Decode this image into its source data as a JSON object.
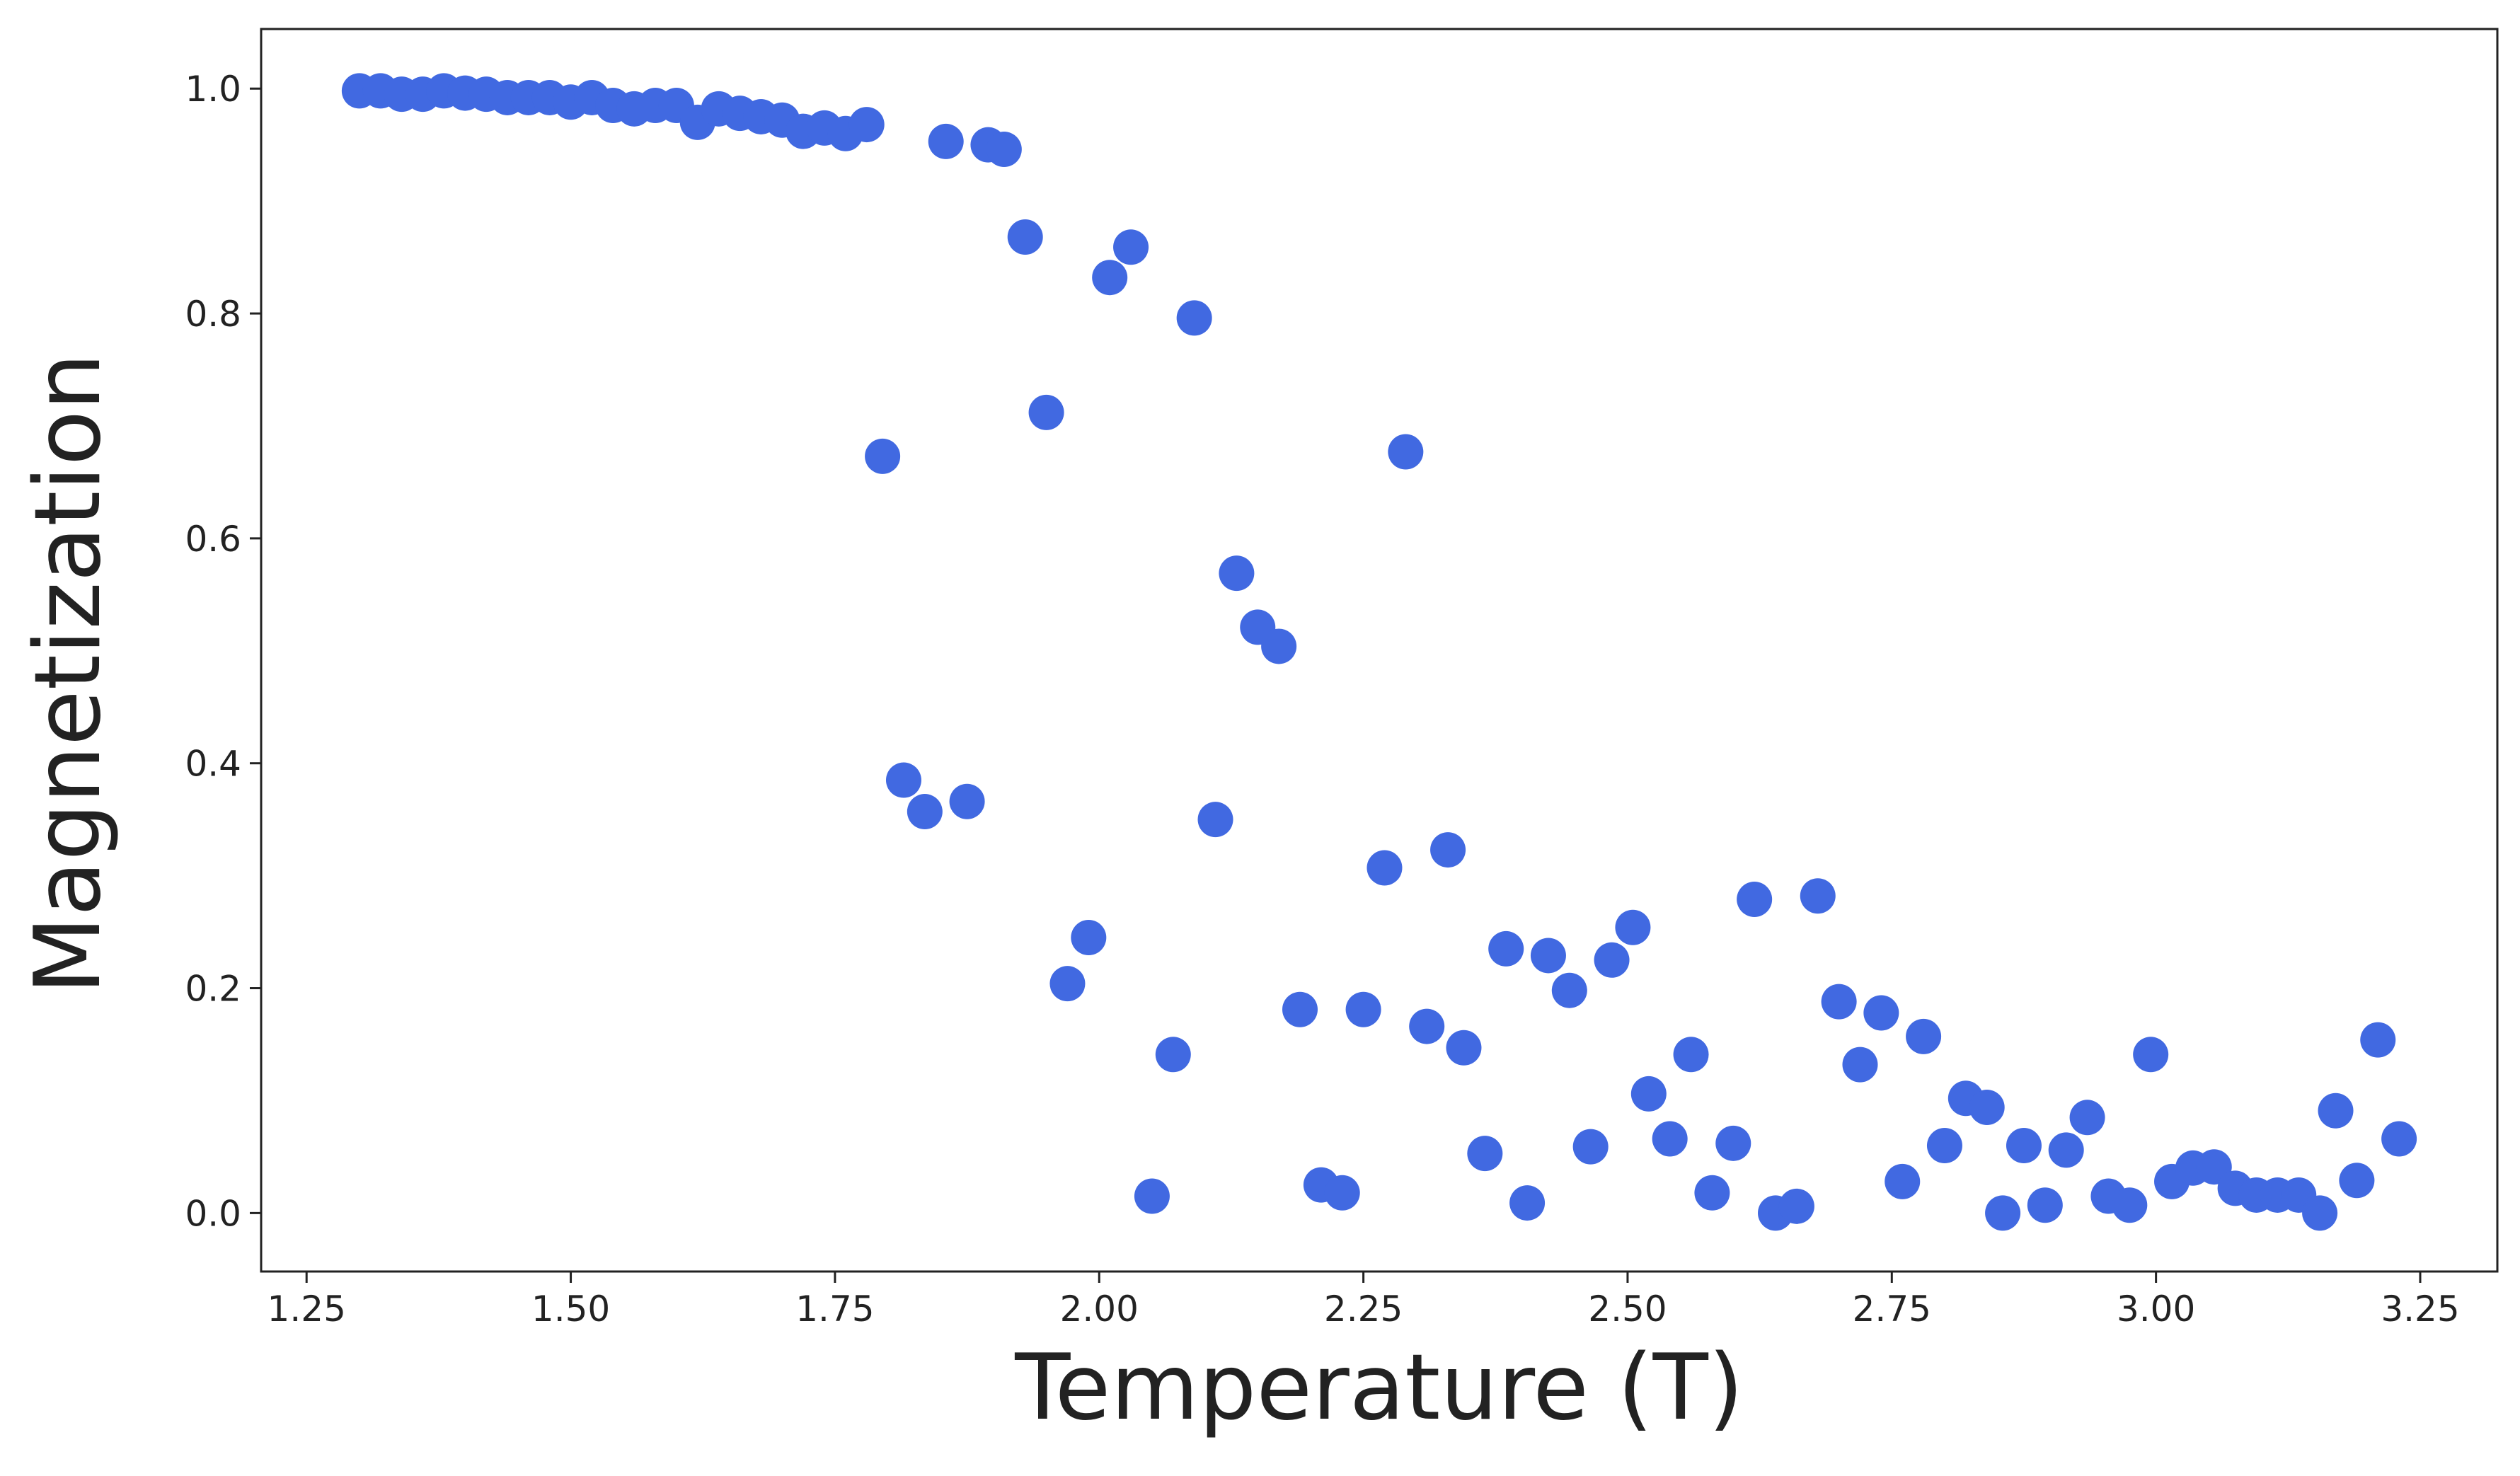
{
  "chart_data": {
    "type": "scatter",
    "x_label": "Temperature (T)",
    "y_label": "Magnetization",
    "color": "#4169e1",
    "xlim": [
      1.207,
      3.323
    ],
    "ylim": [
      -0.052,
      1.053
    ],
    "xticks": [
      1.25,
      {
        "value": 1.5,
        "label": "1.50"
      },
      1.75,
      {
        "value": 2,
        "label": "2.00"
      },
      2.25,
      {
        "value": 2.5,
        "label": "2.50"
      },
      2.75,
      {
        "value": 3,
        "label": "3.00"
      },
      3.25
    ],
    "yticks": [
      {
        "value": 0,
        "label": "0.0"
      },
      0.2,
      0.4,
      0.6,
      0.8,
      {
        "value": 1,
        "label": "1.0"
      }
    ],
    "x": [
      1.3,
      1.32,
      1.34,
      1.36,
      1.38,
      1.4,
      1.42,
      1.44,
      1.46,
      1.48,
      1.5,
      1.52,
      1.54,
      1.56,
      1.58,
      1.6,
      1.62,
      1.64,
      1.66,
      1.68,
      1.7,
      1.72,
      1.74,
      1.76,
      1.78,
      1.795,
      1.815,
      1.835,
      1.855,
      1.875,
      1.895,
      1.91,
      1.93,
      1.95,
      1.97,
      1.99,
      2.01,
      2.03,
      2.05,
      2.07,
      2.09,
      2.11,
      2.13,
      2.15,
      2.17,
      2.19,
      2.21,
      2.23,
      2.25,
      2.27,
      2.29,
      2.31,
      2.33,
      2.345,
      2.365,
      2.385,
      2.405,
      2.425,
      2.445,
      2.465,
      2.485,
      2.505,
      2.52,
      2.54,
      2.56,
      2.58,
      2.6,
      2.62,
      2.64,
      2.66,
      2.68,
      2.7,
      2.72,
      2.74,
      2.76,
      2.78,
      2.8,
      2.82,
      2.84,
      2.855,
      2.875,
      2.895,
      2.915,
      2.935,
      2.955,
      2.975,
      2.995,
      3.015,
      3.035,
      3.055,
      3.075,
      3.095,
      3.115,
      3.135,
      3.155,
      3.17,
      3.19,
      3.21,
      3.23
    ],
    "y": [
      0.998,
      0.998,
      0.995,
      0.995,
      0.998,
      0.996,
      0.995,
      0.992,
      0.992,
      0.992,
      0.988,
      0.992,
      0.985,
      0.982,
      0.985,
      0.985,
      0.97,
      0.982,
      0.978,
      0.975,
      0.972,
      0.962,
      0.965,
      0.96,
      0.968,
      0.673,
      0.385,
      0.357,
      0.953,
      0.366,
      0.95,
      0.946,
      0.868,
      0.712,
      0.204,
      0.245,
      0.832,
      0.859,
      0.015,
      0.141,
      0.796,
      0.35,
      0.569,
      0.521,
      0.504,
      0.181,
      0.025,
      0.018,
      0.181,
      0.307,
      0.677,
      0.166,
      0.323,
      0.147,
      0.053,
      0.235,
      0.009,
      0.229,
      0.198,
      0.059,
      0.225,
      0.254,
      0.106,
      0.066,
      0.141,
      0.018,
      0.062,
      0.279,
      0.0,
      0.006,
      0.282,
      0.188,
      0.132,
      0.178,
      0.028,
      0.157,
      0.06,
      0.102,
      0.094,
      0.0,
      0.06,
      0.007,
      0.056,
      0.085,
      0.015,
      0.007,
      0.141,
      0.028,
      0.04,
      0.041,
      0.022,
      0.016,
      0.016,
      0.016,
      0.0,
      0.091,
      0.029,
      0.154,
      0.066
    ]
  }
}
